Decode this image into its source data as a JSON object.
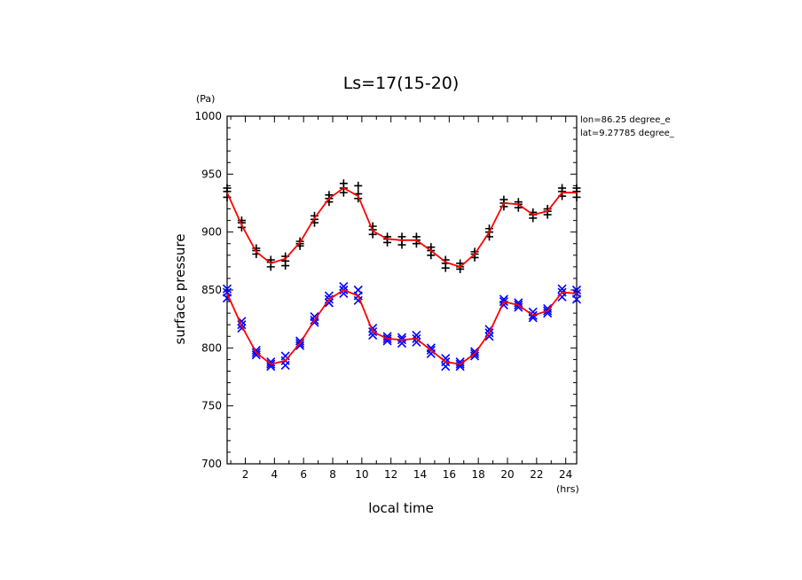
{
  "chart_data": {
    "type": "scatter",
    "title": "Ls=17(15-20)",
    "xlabel": "local time",
    "ylabel": "surface pressure",
    "x_unit": "(hrs)",
    "y_unit": "(Pa)",
    "xlim": [
      0.75,
      24.75
    ],
    "ylim": [
      700,
      1000
    ],
    "x_ticks": [
      2,
      4,
      6,
      8,
      10,
      12,
      14,
      16,
      18,
      20,
      22,
      24
    ],
    "y_ticks": [
      700,
      750,
      800,
      850,
      900,
      950,
      1000
    ],
    "annotations": [
      "lon=86.25 degree_e",
      "lat=9.27785 degree_"
    ],
    "grid": false,
    "series": [
      {
        "marker": "+",
        "color": "#000000",
        "points": [
          [
            0.75,
            935
          ],
          [
            0.75,
            930
          ],
          [
            0.75,
            938
          ],
          [
            1.75,
            908
          ],
          [
            1.75,
            904
          ],
          [
            1.75,
            910
          ],
          [
            2.75,
            884
          ],
          [
            2.75,
            881
          ],
          [
            2.75,
            886
          ],
          [
            3.75,
            874
          ],
          [
            3.75,
            870
          ],
          [
            3.75,
            876
          ],
          [
            4.75,
            875
          ],
          [
            4.75,
            871
          ],
          [
            4.75,
            879
          ],
          [
            5.75,
            890
          ],
          [
            5.75,
            888
          ],
          [
            5.75,
            892
          ],
          [
            6.75,
            911
          ],
          [
            6.75,
            908
          ],
          [
            6.75,
            914
          ],
          [
            7.75,
            929
          ],
          [
            7.75,
            926
          ],
          [
            7.75,
            932
          ],
          [
            8.75,
            938
          ],
          [
            8.75,
            934
          ],
          [
            8.75,
            942
          ],
          [
            9.75,
            933
          ],
          [
            9.75,
            929
          ],
          [
            9.75,
            940
          ],
          [
            10.75,
            902
          ],
          [
            10.75,
            898
          ],
          [
            10.75,
            905
          ],
          [
            11.75,
            894
          ],
          [
            11.75,
            891
          ],
          [
            11.75,
            896
          ],
          [
            12.75,
            893
          ],
          [
            12.75,
            889
          ],
          [
            12.75,
            896
          ],
          [
            13.75,
            893
          ],
          [
            13.75,
            890
          ],
          [
            13.75,
            896
          ],
          [
            14.75,
            884
          ],
          [
            14.75,
            880
          ],
          [
            14.75,
            887
          ],
          [
            15.75,
            873
          ],
          [
            15.75,
            869
          ],
          [
            15.75,
            876
          ],
          [
            16.75,
            870
          ],
          [
            16.75,
            868
          ],
          [
            16.75,
            873
          ],
          [
            17.75,
            881
          ],
          [
            17.75,
            878
          ],
          [
            17.75,
            883
          ],
          [
            18.75,
            900
          ],
          [
            18.75,
            896
          ],
          [
            18.75,
            903
          ],
          [
            19.75,
            925
          ],
          [
            19.75,
            922
          ],
          [
            19.75,
            928
          ],
          [
            20.75,
            924
          ],
          [
            20.75,
            921
          ],
          [
            20.75,
            926
          ],
          [
            21.75,
            915
          ],
          [
            21.75,
            912
          ],
          [
            21.75,
            917
          ],
          [
            22.75,
            918
          ],
          [
            22.75,
            915
          ],
          [
            22.75,
            920
          ],
          [
            23.75,
            935
          ],
          [
            23.75,
            931
          ],
          [
            23.75,
            938
          ],
          [
            24.75,
            935
          ],
          [
            24.75,
            930
          ],
          [
            24.75,
            938
          ]
        ],
        "fit_line": {
          "color": "#ff0000",
          "x": [
            0.75,
            1.75,
            2.75,
            3.75,
            4.75,
            5.75,
            6.75,
            7.75,
            8.75,
            9.75,
            10.75,
            11.75,
            12.75,
            13.75,
            14.75,
            15.75,
            16.75,
            17.75,
            18.75,
            19.75,
            20.75,
            21.75,
            22.75,
            23.75,
            24.75
          ],
          "y": [
            934,
            906,
            883,
            873,
            877,
            891,
            912,
            929,
            938,
            931,
            901,
            894,
            893,
            893,
            884,
            874,
            870,
            881,
            900,
            925,
            924,
            915,
            918,
            934,
            934
          ]
        }
      },
      {
        "marker": "x",
        "color": "#0000ff",
        "points": [
          [
            0.75,
            848
          ],
          [
            0.75,
            843
          ],
          [
            0.75,
            851
          ],
          [
            1.75,
            820
          ],
          [
            1.75,
            817
          ],
          [
            1.75,
            823
          ],
          [
            2.75,
            796
          ],
          [
            2.75,
            794
          ],
          [
            2.75,
            798
          ],
          [
            3.75,
            786
          ],
          [
            3.75,
            784
          ],
          [
            3.75,
            788
          ],
          [
            4.75,
            789
          ],
          [
            4.75,
            785
          ],
          [
            4.75,
            793
          ],
          [
            5.75,
            804
          ],
          [
            5.75,
            802
          ],
          [
            5.75,
            806
          ],
          [
            6.75,
            824
          ],
          [
            6.75,
            822
          ],
          [
            6.75,
            827
          ],
          [
            7.75,
            842
          ],
          [
            7.75,
            839
          ],
          [
            7.75,
            845
          ],
          [
            8.75,
            850
          ],
          [
            8.75,
            847
          ],
          [
            8.75,
            853
          ],
          [
            9.75,
            845
          ],
          [
            9.75,
            841
          ],
          [
            9.75,
            850
          ],
          [
            10.75,
            814
          ],
          [
            10.75,
            811
          ],
          [
            10.75,
            817
          ],
          [
            11.75,
            808
          ],
          [
            11.75,
            806
          ],
          [
            11.75,
            810
          ],
          [
            12.75,
            807
          ],
          [
            12.75,
            804
          ],
          [
            12.75,
            809
          ],
          [
            13.75,
            808
          ],
          [
            13.75,
            805
          ],
          [
            13.75,
            811
          ],
          [
            14.75,
            798
          ],
          [
            14.75,
            795
          ],
          [
            14.75,
            800
          ],
          [
            15.75,
            788
          ],
          [
            15.75,
            784
          ],
          [
            15.75,
            791
          ],
          [
            16.75,
            786
          ],
          [
            16.75,
            784
          ],
          [
            16.75,
            788
          ],
          [
            17.75,
            795
          ],
          [
            17.75,
            793
          ],
          [
            17.75,
            797
          ],
          [
            18.75,
            813
          ],
          [
            18.75,
            810
          ],
          [
            18.75,
            816
          ],
          [
            19.75,
            840
          ],
          [
            19.75,
            837
          ],
          [
            19.75,
            842
          ],
          [
            20.75,
            837
          ],
          [
            20.75,
            835
          ],
          [
            20.75,
            839
          ],
          [
            21.75,
            828
          ],
          [
            21.75,
            826
          ],
          [
            21.75,
            831
          ],
          [
            22.75,
            832
          ],
          [
            22.75,
            830
          ],
          [
            22.75,
            834
          ],
          [
            23.75,
            848
          ],
          [
            23.75,
            844
          ],
          [
            23.75,
            851
          ],
          [
            24.75,
            847
          ],
          [
            24.75,
            842
          ],
          [
            24.75,
            850
          ]
        ],
        "fit_line": {
          "color": "#ff0000",
          "x": [
            0.75,
            1.75,
            2.75,
            3.75,
            4.75,
            5.75,
            6.75,
            7.75,
            8.75,
            9.75,
            10.75,
            11.75,
            12.75,
            13.75,
            14.75,
            15.75,
            16.75,
            17.75,
            18.75,
            19.75,
            20.75,
            21.75,
            22.75,
            23.75,
            24.75
          ],
          "y": [
            847,
            819,
            796,
            786,
            789,
            804,
            824,
            842,
            850,
            845,
            814,
            808,
            807,
            808,
            798,
            788,
            786,
            795,
            813,
            840,
            837,
            828,
            832,
            848,
            847
          ]
        }
      }
    ]
  }
}
